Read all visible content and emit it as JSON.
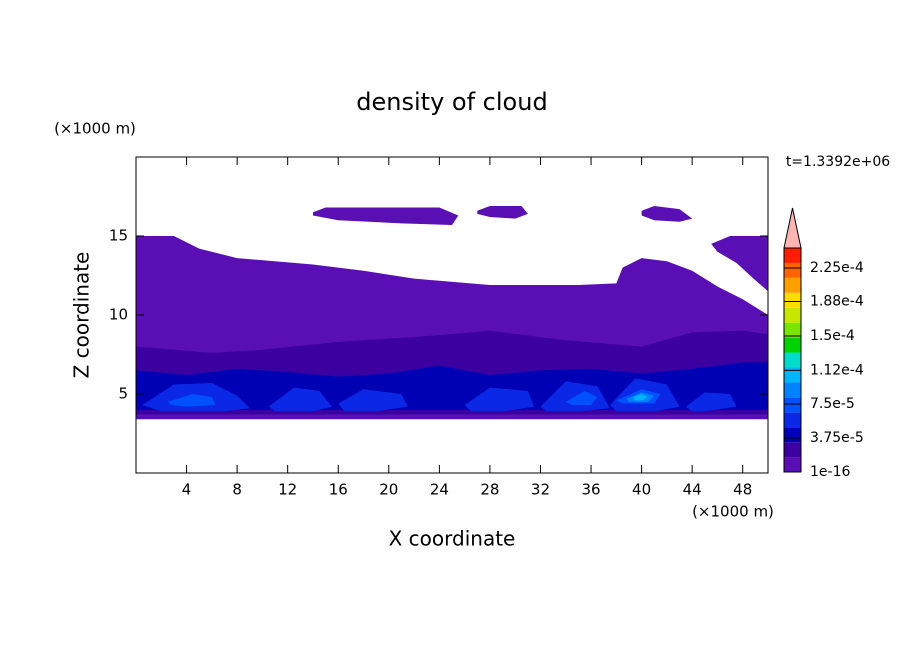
{
  "chart_data": {
    "type": "contour",
    "title": "density of cloud",
    "xlabel": "X coordinate",
    "ylabel": "Z coordinate",
    "xunit": "(×1000 m)",
    "yunit": "(×1000 m)",
    "annotation": "t=1.3392e+06",
    "xlim": [
      0,
      50
    ],
    "ylim": [
      0,
      20
    ],
    "xticks": [
      4,
      8,
      12,
      16,
      20,
      24,
      28,
      32,
      36,
      40,
      44,
      48
    ],
    "yticks": [
      5,
      10,
      15
    ],
    "clim": [
      1e-16,
      0.000247
    ],
    "cticks": [
      1e-16,
      {
        "value": 3.75e-05,
        "label": "3.75e-5"
      },
      {
        "value": 7.5e-05,
        "label": "7.5e-5"
      },
      {
        "value": 0.000112,
        "label": "1.12e-4"
      },
      {
        "value": 0.00015,
        "label": "1.5e-4"
      },
      {
        "value": 0.000188,
        "label": "1.88e-4"
      },
      {
        "value": 0.000225,
        "label": "2.25e-4"
      }
    ],
    "colors": [
      "#5a0fb4",
      "#3c00a0",
      "#0000b4",
      "#0a28e6",
      "#0050ff",
      "#0082ff",
      "#00b4ff",
      "#00dcc8",
      "#00d200",
      "#78e600",
      "#c8e600",
      "#ffdc00",
      "#ffa000",
      "#ff6400",
      "#ff1e00"
    ],
    "extend_color": "#ffb4b4",
    "regions": [
      {
        "level": 0,
        "x": [
          0,
          3,
          5,
          8,
          14,
          18,
          22,
          28,
          35,
          38,
          38.5,
          40,
          42,
          44,
          46,
          48,
          50,
          50,
          48,
          44,
          40,
          36,
          30,
          24,
          20,
          16,
          12,
          8,
          4,
          0
        ],
        "z": [
          15,
          15,
          14.2,
          13.6,
          13.2,
          12.8,
          12.3,
          11.9,
          11.9,
          12,
          13,
          13.6,
          13.4,
          12.8,
          11.8,
          11,
          10,
          3.4,
          3.4,
          3.4,
          3.4,
          3.4,
          3.4,
          3.4,
          3.4,
          3.4,
          3.4,
          3.4,
          3.4,
          3.4
        ]
      },
      {
        "level": 0,
        "x": [
          45.5,
          47,
          50,
          50,
          49,
          47.5,
          46
        ],
        "z": [
          14.5,
          15,
          15,
          11.5,
          12.2,
          13.3,
          14
        ]
      },
      {
        "level": 0,
        "x": [
          14,
          15,
          24,
          25.5,
          25,
          21,
          16,
          14
        ],
        "z": [
          16.5,
          16.8,
          16.8,
          16.3,
          15.7,
          15.8,
          16,
          16.3
        ]
      },
      {
        "level": 0,
        "x": [
          27,
          28,
          30.5,
          31,
          30,
          28,
          27
        ],
        "z": [
          16.6,
          16.9,
          16.9,
          16.4,
          16.1,
          16.2,
          16.4
        ]
      },
      {
        "level": 0,
        "x": [
          40,
          41,
          43,
          44,
          43,
          41,
          40
        ],
        "z": [
          16.6,
          16.9,
          16.7,
          16.1,
          15.9,
          16,
          16.3
        ]
      },
      {
        "level": 1,
        "x": [
          0,
          6,
          10,
          16,
          22,
          28,
          34,
          40,
          44,
          48,
          50,
          50,
          0
        ],
        "z": [
          8,
          7.6,
          7.8,
          8.3,
          8.6,
          9,
          8.4,
          8,
          8.9,
          9,
          8.8,
          3.7,
          3.7
        ]
      },
      {
        "level": 2,
        "x": [
          0,
          4,
          8,
          12,
          16,
          20,
          24,
          28,
          32,
          36,
          40,
          44,
          48,
          50,
          50,
          0
        ],
        "z": [
          6.5,
          6.2,
          6.6,
          6.4,
          6.1,
          6.3,
          6.8,
          6.2,
          6.5,
          6.6,
          6.3,
          6.6,
          7,
          7,
          4,
          4
        ]
      },
      {
        "level": 3,
        "x": [
          0.5,
          3,
          6,
          8,
          9,
          7,
          2
        ],
        "z": [
          4.3,
          5.6,
          5.7,
          4.9,
          4.1,
          3.9,
          3.9
        ]
      },
      {
        "level": 3,
        "x": [
          10.5,
          12.5,
          14.5,
          15.5,
          14,
          11
        ],
        "z": [
          4.2,
          5.4,
          5.2,
          4.2,
          3.9,
          3.9
        ]
      },
      {
        "level": 3,
        "x": [
          16,
          18,
          21,
          21.5,
          19,
          16.5
        ],
        "z": [
          4.4,
          5.3,
          5,
          4.2,
          3.9,
          3.9
        ]
      },
      {
        "level": 3,
        "x": [
          26,
          28,
          31,
          31.5,
          29,
          26.5
        ],
        "z": [
          4.3,
          5.4,
          5.2,
          4.2,
          3.9,
          3.9
        ]
      },
      {
        "level": 3,
        "x": [
          32,
          34,
          36.5,
          37.5,
          35,
          32.5
        ],
        "z": [
          4.2,
          5.8,
          5.5,
          4.1,
          3.9,
          3.9
        ]
      },
      {
        "level": 3,
        "x": [
          37.5,
          39.5,
          42,
          43,
          41,
          38
        ],
        "z": [
          4.3,
          6,
          5.6,
          4.2,
          3.9,
          3.9
        ]
      },
      {
        "level": 3,
        "x": [
          43.5,
          45,
          47,
          47.5,
          45,
          44
        ],
        "z": [
          4.2,
          5.1,
          5,
          4.2,
          3.9,
          3.9
        ]
      },
      {
        "level": 4,
        "x": [
          2.5,
          4.5,
          6,
          6.3,
          4,
          2.8
        ],
        "z": [
          4.5,
          5,
          4.8,
          4.3,
          4.2,
          4.3
        ]
      },
      {
        "level": 4,
        "x": [
          34,
          35.5,
          36.5,
          36,
          34.5
        ],
        "z": [
          4.5,
          5.2,
          4.8,
          4.3,
          4.3
        ]
      },
      {
        "level": 4,
        "x": [
          38,
          40,
          41.5,
          41,
          38.5
        ],
        "z": [
          4.6,
          5.3,
          5,
          4.4,
          4.4
        ]
      },
      {
        "level": 5,
        "x": [
          38.8,
          40,
          41,
          40.5,
          39
        ],
        "z": [
          4.7,
          5.1,
          4.9,
          4.5,
          4.5
        ]
      },
      {
        "level": 6,
        "x": [
          39.3,
          40,
          40.5,
          40,
          39.5
        ],
        "z": [
          4.8,
          5,
          4.8,
          4.6,
          4.6
        ]
      }
    ]
  }
}
